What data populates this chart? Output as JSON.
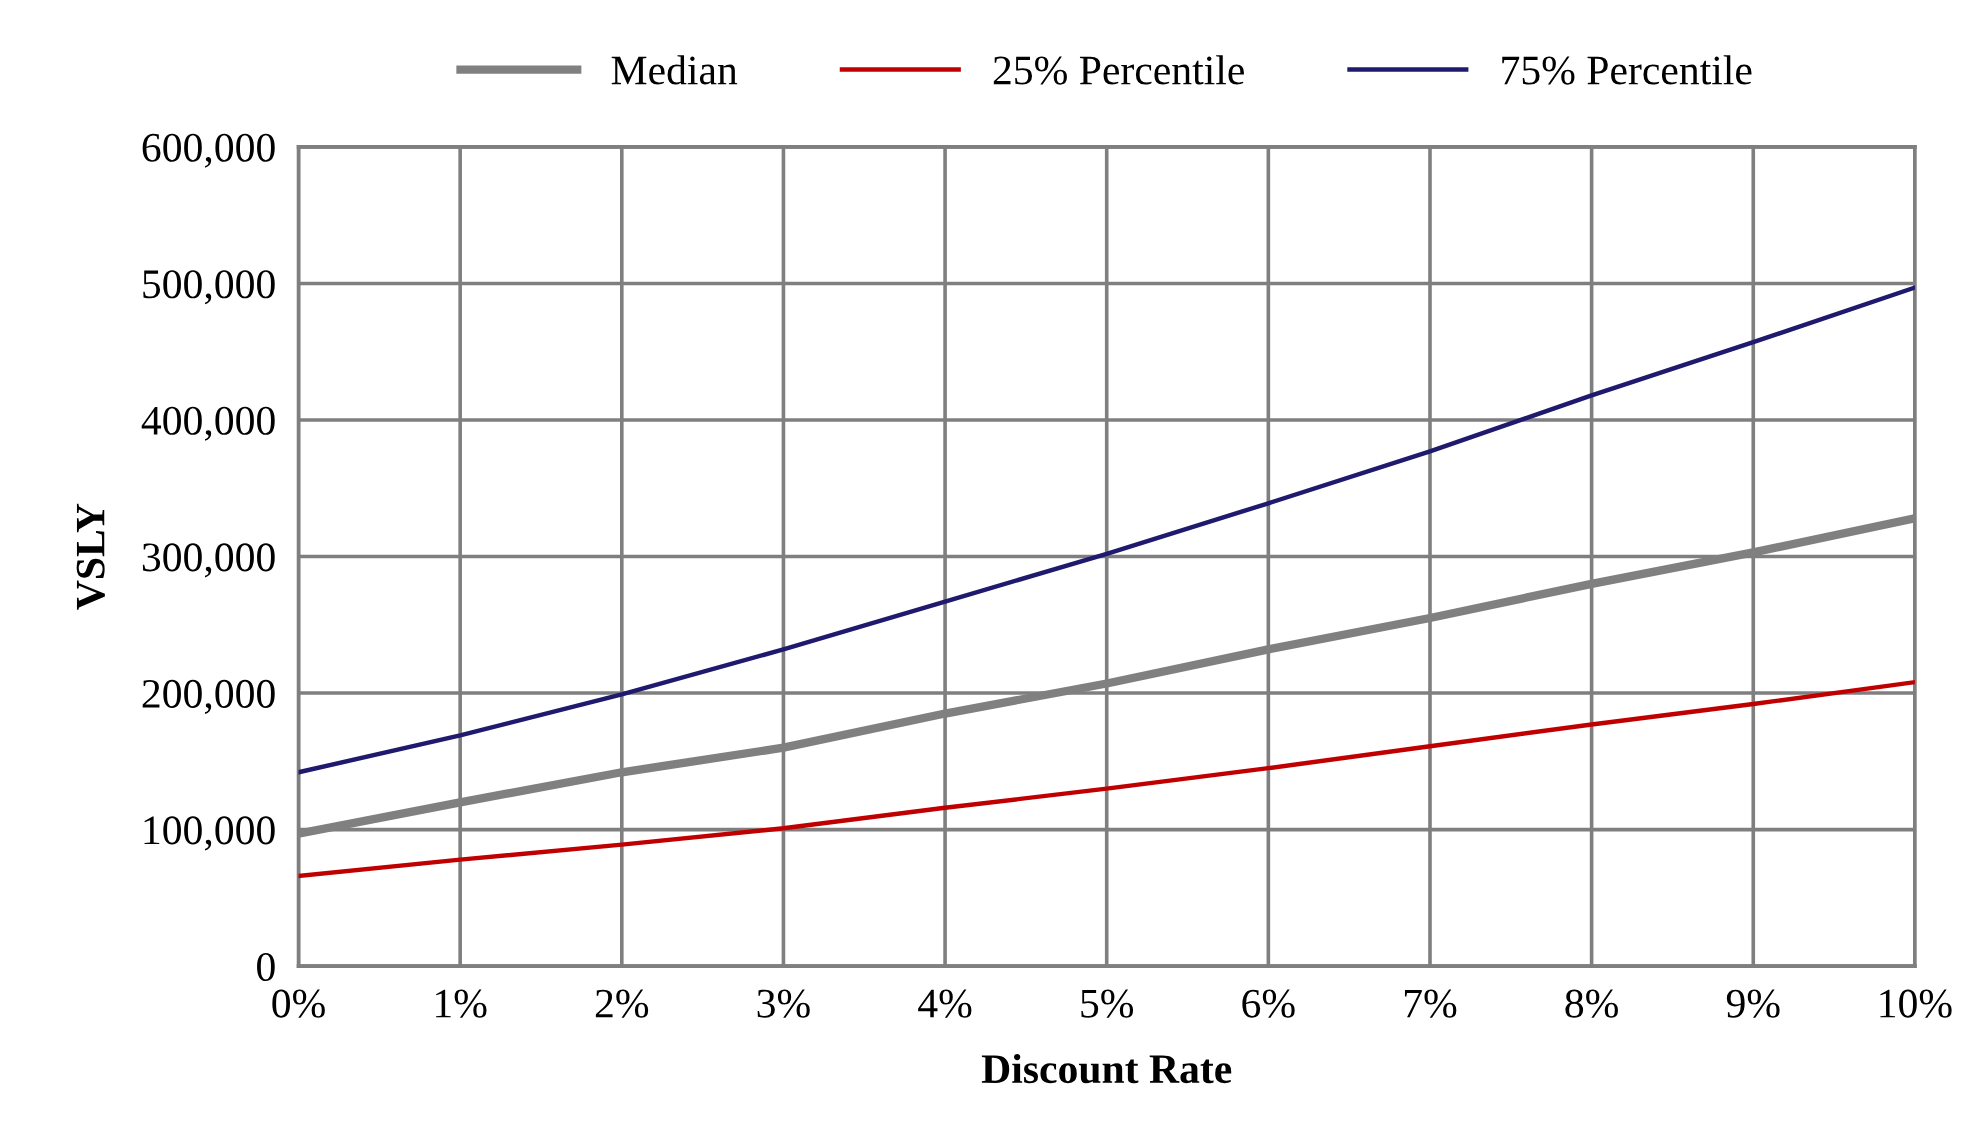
{
  "chart_data": {
    "type": "line",
    "xlabel": "Discount Rate",
    "ylabel": "VSLY",
    "x": [
      0,
      1,
      2,
      3,
      4,
      5,
      6,
      7,
      8,
      9,
      10
    ],
    "series": [
      {
        "name": "Median",
        "color": "#808080",
        "values": [
          97000,
          120000,
          142000,
          160000,
          185000,
          207000,
          232000,
          255000,
          280000,
          303000,
          328000
        ]
      },
      {
        "name": "25% Percentile",
        "color": "#c00000",
        "values": [
          66000,
          78000,
          89000,
          101000,
          116000,
          130000,
          145000,
          161000,
          177000,
          192000,
          208000
        ]
      },
      {
        "name": "75% Percentile",
        "color": "#1f1a6e",
        "values": [
          142000,
          169000,
          199000,
          232000,
          267000,
          302000,
          339000,
          377000,
          418000,
          457000,
          497000
        ]
      }
    ],
    "xlim": [
      0,
      10
    ],
    "xticks": [
      {
        "value": 0,
        "label": "0%"
      },
      {
        "value": 1,
        "label": "1%"
      },
      {
        "value": 2,
        "label": "2%"
      },
      {
        "value": 3,
        "label": "3%"
      },
      {
        "value": 4,
        "label": "4%"
      },
      {
        "value": 5,
        "label": "5%"
      },
      {
        "value": 6,
        "label": "6%"
      },
      {
        "value": 7,
        "label": "7%"
      },
      {
        "value": 8,
        "label": "8%"
      },
      {
        "value": 9,
        "label": "9%"
      },
      {
        "value": 10,
        "label": "10%"
      }
    ],
    "ylim": [
      0,
      600000
    ],
    "yticks": [
      0,
      {
        "value": 100000,
        "label": "100,000"
      },
      {
        "value": 200000,
        "label": "200,000"
      },
      {
        "value": 300000,
        "label": "300,000"
      },
      {
        "value": 400000,
        "label": "400,000"
      },
      {
        "value": 500000,
        "label": "500,000"
      },
      {
        "value": 600000,
        "label": "600,000"
      }
    ],
    "grid": true,
    "legend": "top",
    "marker": "none",
    "line_style": "solid"
  }
}
